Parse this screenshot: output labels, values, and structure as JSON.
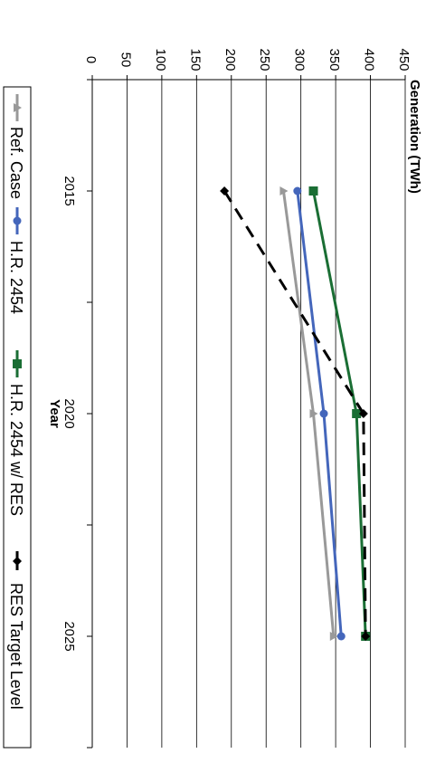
{
  "chart_data": {
    "type": "line",
    "title": "",
    "xlabel": "Year",
    "ylabel": "Generation (TWh)",
    "x_ticks": [
      2015,
      2020,
      2025
    ],
    "y_ticks": [
      0,
      50,
      100,
      150,
      200,
      250,
      300,
      350,
      400,
      450
    ],
    "xlim": [
      2012.5,
      2027.5
    ],
    "ylim": [
      0,
      450
    ],
    "grid": "horizontal",
    "legend_position": "bottom",
    "series": [
      {
        "name": "Ref. Case",
        "color": "#999999",
        "marker": "triangle",
        "dash": "solid",
        "x": [
          2015,
          2020,
          2025
        ],
        "y": [
          275,
          318,
          347
        ]
      },
      {
        "name": "H.R. 2454",
        "color": "#4466bb",
        "marker": "circle",
        "dash": "solid",
        "x": [
          2015,
          2020,
          2025
        ],
        "y": [
          295,
          333,
          358
        ]
      },
      {
        "name": "H.R. 2454 w/ RES",
        "color": "#1a6e34",
        "marker": "square",
        "dash": "solid",
        "x": [
          2015,
          2020,
          2025
        ],
        "y": [
          318,
          380,
          393
        ]
      },
      {
        "name": "RES Target Level",
        "color": "#000000",
        "marker": "diamond",
        "dash": "dashed",
        "x": [
          2015,
          2020,
          2025
        ],
        "y": [
          190,
          390,
          393
        ]
      }
    ]
  }
}
